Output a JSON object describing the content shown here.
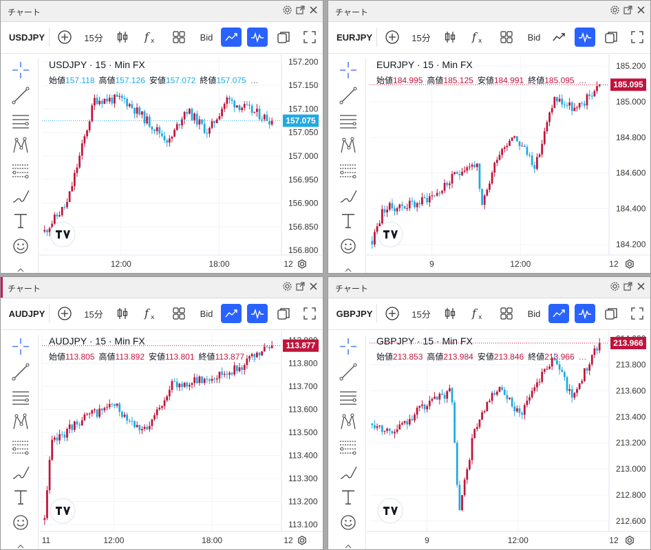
{
  "common": {
    "window_title": "チャート",
    "interval": "15分",
    "price_type": "Bid",
    "ohlc_labels": {
      "open": "始値",
      "high": "高値",
      "low": "安値",
      "close": "終値"
    },
    "more": "…",
    "colors": {
      "up": "#c0143c",
      "down": "#21a9e1",
      "active": "#2962ff"
    },
    "left_tools": [
      "crosshair-icon",
      "trend-line-icon",
      "horizontal-lines-icon",
      "pattern-icon",
      "fib-icon",
      "brush-icon",
      "text-icon",
      "emoji-icon"
    ]
  },
  "charts": [
    {
      "symbol": "USDJPY",
      "legend": "USDJPY · 15 · Min FX",
      "open": "157.118",
      "high": "157.126",
      "low": "157.072",
      "close": "157.075",
      "price_tag": "157.075",
      "tag_color": "#21a9e1",
      "line_chart_active": true,
      "y_ticks": [
        "157.200",
        "157.150",
        "157.100",
        "157.050",
        "157.000",
        "156.950",
        "156.900",
        "156.850",
        "156.800"
      ],
      "ylim": [
        156.79,
        157.21
      ],
      "x_ticks": [
        {
          "label": "12:00",
          "t": 0.33
        },
        {
          "label": "18:00",
          "t": 0.74
        },
        {
          "label": "12",
          "t": 1.14
        }
      ],
      "chart_data": {
        "type": "candlestick",
        "seed": 11,
        "start": 156.84,
        "end": 157.075,
        "path": [
          [
            0,
            156.84
          ],
          [
            0.1,
            156.9
          ],
          [
            0.22,
            157.12
          ],
          [
            0.35,
            157.12
          ],
          [
            0.55,
            157.03
          ],
          [
            0.62,
            157.1
          ],
          [
            0.72,
            157.05
          ],
          [
            0.8,
            157.12
          ],
          [
            1,
            157.075
          ]
        ]
      }
    },
    {
      "symbol": "EURJPY",
      "legend": "EURJPY · 15 · Min FX",
      "open": "184.995",
      "high": "185.125",
      "low": "184.991",
      "close": "185.095",
      "price_tag": "185.095",
      "tag_color": "#c0143c",
      "line_chart_active": false,
      "y_ticks": [
        "185.200",
        "185.000",
        "184.800",
        "184.600",
        "184.400",
        "184.200"
      ],
      "ylim": [
        184.14,
        185.25
      ],
      "x_ticks": [
        {
          "label": "9",
          "t": 0.26
        },
        {
          "label": "12:00",
          "t": 0.63
        },
        {
          "label": "12",
          "t": 1.02
        }
      ],
      "chart_data": {
        "type": "candlestick",
        "seed": 23,
        "start": 184.22,
        "end": 185.095,
        "path": [
          [
            0,
            184.22
          ],
          [
            0.05,
            184.4
          ],
          [
            0.2,
            184.43
          ],
          [
            0.3,
            184.5
          ],
          [
            0.4,
            184.63
          ],
          [
            0.46,
            184.65
          ],
          [
            0.48,
            184.39
          ],
          [
            0.55,
            184.7
          ],
          [
            0.62,
            184.82
          ],
          [
            0.72,
            184.64
          ],
          [
            0.8,
            185.02
          ],
          [
            0.9,
            184.95
          ],
          [
            1,
            185.095
          ]
        ]
      }
    },
    {
      "symbol": "AUDJPY",
      "legend": "AUDJPY · 15 · Min FX",
      "open": "113.805",
      "high": "113.892",
      "low": "113.801",
      "close": "113.877",
      "price_tag": "113.877",
      "tag_color": "#c0143c",
      "line_chart_active": true,
      "y_ticks": [
        "113.900",
        "113.800",
        "113.700",
        "113.600",
        "113.500",
        "113.400",
        "113.300",
        "113.200",
        "113.100"
      ],
      "ylim": [
        113.07,
        113.93
      ],
      "x_ticks": [
        {
          "label": "11",
          "t": 0.0
        },
        {
          "label": "12:00",
          "t": 0.3
        },
        {
          "label": "18:00",
          "t": 0.71
        },
        {
          "label": "12",
          "t": 1.12
        }
      ],
      "chart_data": {
        "type": "candlestick",
        "seed": 37,
        "start": 113.12,
        "end": 113.877,
        "path": [
          [
            0,
            113.12
          ],
          [
            0.03,
            113.45
          ],
          [
            0.15,
            113.55
          ],
          [
            0.3,
            113.62
          ],
          [
            0.45,
            113.5
          ],
          [
            0.55,
            113.7
          ],
          [
            0.7,
            113.73
          ],
          [
            0.85,
            113.78
          ],
          [
            1,
            113.877
          ]
        ]
      }
    },
    {
      "symbol": "GBPJPY",
      "legend": "GBPJPY · 15 · Min FX",
      "open": "213.853",
      "high": "213.984",
      "low": "213.846",
      "close": "213.966",
      "price_tag": "213.966",
      "tag_color": "#c0143c",
      "line_chart_active": true,
      "y_ticks": [
        "214.000",
        "213.800",
        "213.600",
        "213.400",
        "213.200",
        "213.000",
        "212.800",
        "212.600"
      ],
      "ylim": [
        212.52,
        214.04
      ],
      "x_ticks": [
        {
          "label": "9",
          "t": 0.24
        },
        {
          "label": "12:00",
          "t": 0.62
        },
        {
          "label": "12",
          "t": 1.02
        }
      ],
      "chart_data": {
        "type": "candlestick",
        "seed": 53,
        "start": 213.35,
        "end": 213.966,
        "path": [
          [
            0,
            213.35
          ],
          [
            0.1,
            213.28
          ],
          [
            0.2,
            213.45
          ],
          [
            0.35,
            213.6
          ],
          [
            0.38,
            212.65
          ],
          [
            0.45,
            213.3
          ],
          [
            0.55,
            213.62
          ],
          [
            0.65,
            213.42
          ],
          [
            0.75,
            213.75
          ],
          [
            0.8,
            213.85
          ],
          [
            0.88,
            213.55
          ],
          [
            1,
            213.966
          ]
        ]
      }
    }
  ]
}
